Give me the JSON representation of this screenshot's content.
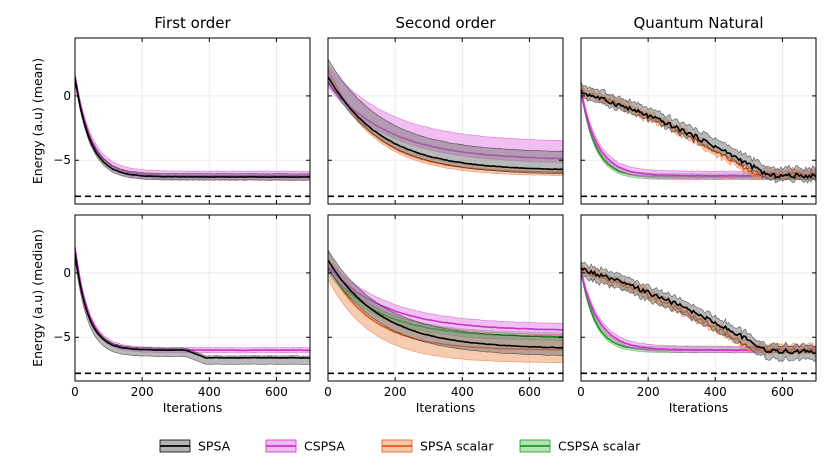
{
  "figure": {
    "legend": [
      {
        "key": "spsa",
        "label": "SPSA",
        "color": "#000000",
        "fill": "#808080"
      },
      {
        "key": "cspsa",
        "label": "CSPSA",
        "color": "#cc33cc",
        "fill": "#e68ae6"
      },
      {
        "key": "spsa_scalar",
        "label": "SPSA scalar",
        "color": "#e05a1a",
        "fill": "#f0a070"
      },
      {
        "key": "cspsa_scalar",
        "label": "CSPSA scalar",
        "color": "#1f9a1f",
        "fill": "#7fd07f"
      }
    ],
    "reference_line": {
      "value": -7.8,
      "style": "dashed",
      "color": "#000000"
    }
  },
  "chart_data": [
    {
      "type": "line",
      "row": 0,
      "col": 0,
      "title": "First order",
      "ylabel": "Energy (a.u) (mean)",
      "xlabel": "",
      "xlim": [
        0,
        700
      ],
      "ylim": [
        -8.4,
        4.5
      ],
      "xticks": [
        0,
        200,
        400,
        600
      ],
      "yticks": [
        0,
        -5
      ],
      "xticks_labeled": false,
      "grid": true,
      "series": [
        {
          "key": "cspsa",
          "name": "CSPSA",
          "start": 1.5,
          "end": -6.2,
          "tau": 48,
          "band_upper": 0.35,
          "band_lower": 0.3
        },
        {
          "key": "spsa",
          "name": "SPSA",
          "start": 1.4,
          "end": -6.3,
          "tau": 45,
          "band_upper": 0.25,
          "band_lower": 0.25
        }
      ]
    },
    {
      "type": "line",
      "row": 0,
      "col": 1,
      "title": "Second order",
      "ylabel": "",
      "xlabel": "",
      "xlim": [
        0,
        700
      ],
      "ylim": [
        -8.4,
        4.5
      ],
      "xticks": [
        0,
        200,
        400,
        600
      ],
      "yticks": [
        0,
        -5
      ],
      "xticks_labeled": false,
      "grid": true,
      "series": [
        {
          "key": "spsa_scalar",
          "name": "SPSA scalar",
          "start": 2.0,
          "end": -6.0,
          "tau": 140,
          "band_upper": 0.25,
          "band_lower": 0.25
        },
        {
          "key": "cspsa",
          "name": "CSPSA",
          "start": 1.0,
          "end": -5.0,
          "tau": 180,
          "band_upper": 1.4,
          "band_lower": 0.3
        },
        {
          "key": "spsa",
          "name": "SPSA",
          "start": 1.5,
          "end": -5.8,
          "tau": 160,
          "band_upper": 1.4,
          "band_lower": 0.35
        }
      ]
    },
    {
      "type": "line",
      "row": 0,
      "col": 2,
      "title": "Quantum Natural",
      "ylabel": "",
      "xlabel": "",
      "xlim": [
        0,
        700
      ],
      "ylim": [
        -8.4,
        4.5
      ],
      "xticks": [
        0,
        200,
        400,
        600
      ],
      "yticks": [
        0,
        -5
      ],
      "xticks_labeled": false,
      "grid": true,
      "series": [
        {
          "key": "cspsa_scalar",
          "name": "CSPSA scalar",
          "start": 0.5,
          "end": -6.3,
          "tau": 42,
          "band_upper": 0.25,
          "band_lower": 0.2
        },
        {
          "key": "cspsa",
          "name": "CSPSA",
          "start": 0.3,
          "end": -6.2,
          "tau": 50,
          "band_upper": 0.35,
          "band_lower": 0.25
        },
        {
          "key": "spsa_scalar",
          "name": "SPSA scalar",
          "start": 0.4,
          "end": -6.1,
          "linear_until": 520,
          "band_upper": 0.35,
          "band_lower": 0.3
        },
        {
          "key": "spsa",
          "name": "SPSA",
          "start": 0.3,
          "end": -6.2,
          "linear_until": 560,
          "band_upper": 0.6,
          "band_lower": 0.35
        }
      ]
    },
    {
      "type": "line",
      "row": 1,
      "col": 0,
      "title": "",
      "ylabel": "Energy (a.u) (median)",
      "xlabel": "Iterations",
      "xlim": [
        0,
        700
      ],
      "ylim": [
        -8.4,
        4.5
      ],
      "xticks": [
        0,
        200,
        400,
        600
      ],
      "yticks": [
        0,
        -5
      ],
      "xticks_labeled": true,
      "grid": true,
      "series": [
        {
          "key": "cspsa",
          "name": "CSPSA",
          "start": 2.0,
          "end": -6.0,
          "tau": 40,
          "band_upper": 0.2,
          "band_lower": 0.2
        },
        {
          "key": "spsa",
          "name": "SPSA",
          "start": 1.6,
          "end": -6.0,
          "tau": 38,
          "band_upper": 0.15,
          "band_lower": 0.5,
          "late_drop": -0.6
        }
      ]
    },
    {
      "type": "line",
      "row": 1,
      "col": 1,
      "title": "",
      "ylabel": "",
      "xlabel": "Iterations",
      "xlim": [
        0,
        700
      ],
      "ylim": [
        -8.4,
        4.5
      ],
      "xticks": [
        0,
        200,
        400,
        600
      ],
      "yticks": [
        0,
        -5
      ],
      "xticks_labeled": true,
      "grid": true,
      "series": [
        {
          "key": "spsa_scalar",
          "name": "SPSA scalar",
          "start": 0.5,
          "end": -6.0,
          "tau": 130,
          "band_upper": 1.2,
          "band_lower": 1.0
        },
        {
          "key": "cspsa_scalar",
          "name": "CSPSA scalar",
          "start": 0.3,
          "end": -5.0,
          "tau": 150,
          "band_upper": 0.3,
          "band_lower": 0.3
        },
        {
          "key": "cspsa",
          "name": "CSPSA",
          "start": 0.5,
          "end": -4.5,
          "tau": 170,
          "band_upper": 0.5,
          "band_lower": 0.4
        },
        {
          "key": "spsa",
          "name": "SPSA",
          "start": 1.0,
          "end": -5.9,
          "tau": 160,
          "band_upper": 0.8,
          "band_lower": 0.6
        }
      ]
    },
    {
      "type": "line",
      "row": 1,
      "col": 2,
      "title": "",
      "ylabel": "",
      "xlabel": "Iterations",
      "xlim": [
        0,
        700
      ],
      "ylim": [
        -8.4,
        4.5
      ],
      "xticks": [
        0,
        200,
        400,
        600
      ],
      "yticks": [
        0,
        -5
      ],
      "xticks_labeled": true,
      "grid": true,
      "series": [
        {
          "key": "cspsa_scalar",
          "name": "CSPSA scalar",
          "start": 0.2,
          "end": -6.0,
          "tau": 42,
          "band_upper": 0.25,
          "band_lower": 0.2
        },
        {
          "key": "cspsa",
          "name": "CSPSA",
          "start": 0.0,
          "end": -6.0,
          "tau": 55,
          "band_upper": 0.3,
          "band_lower": 0.2
        },
        {
          "key": "spsa_scalar",
          "name": "SPSA scalar",
          "start": 0.2,
          "end": -6.0,
          "linear_until": 520,
          "band_upper": 0.4,
          "band_lower": 0.3
        },
        {
          "key": "spsa",
          "name": "SPSA",
          "start": 0.3,
          "end": -6.1,
          "linear_until": 560,
          "band_upper": 0.5,
          "band_lower": 0.6
        }
      ]
    }
  ]
}
